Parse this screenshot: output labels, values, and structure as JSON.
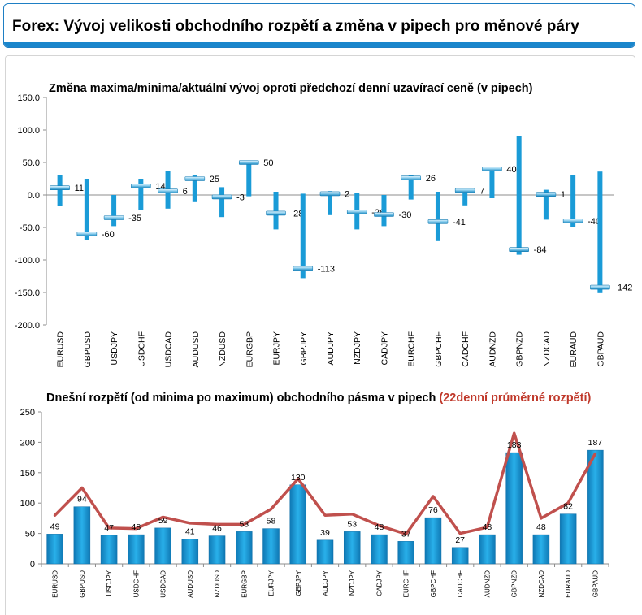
{
  "header": {
    "title": "Forex: Vývoj velikosti obchodního rozpětí a změna v pipech pro měnové páry"
  },
  "colors": {
    "bar": "#1a9bd7",
    "line": "#c0504d",
    "accent": "#1a86cc"
  },
  "chart_data": [
    {
      "type": "bar",
      "subtype": "floating range with marker",
      "title": "Změna maxima/minima/aktuální vývoj oproti předchozí denní uzavírací ceně (v pipech)",
      "xlabel": "",
      "ylabel": "",
      "ylim": [
        -200,
        150
      ],
      "yticks": [
        "150.0",
        "100.0",
        "50.0",
        "0.0",
        "-50.0",
        "-100.0",
        "-150.0",
        "-200.0"
      ],
      "grid": false,
      "categories": [
        "EURUSD",
        "GBPUSD",
        "USDJPY",
        "USDCHF",
        "USDCAD",
        "AUDUSD",
        "NZDUSD",
        "EURGBP",
        "EURJPY",
        "GBPJPY",
        "AUDJPY",
        "NZDJPY",
        "CADJPY",
        "EURCHF",
        "GBPCHF",
        "CADCHF",
        "AUDNZD",
        "GBPNZD",
        "NZDCAD",
        "EURAUD",
        "GBPAUD"
      ],
      "series": [
        {
          "values": [
            31,
            25,
            0,
            25,
            37,
            30,
            12,
            53,
            5,
            2,
            6,
            3,
            0,
            30,
            5,
            10,
            43,
            91,
            8,
            31,
            36
          ]
        },
        {
          "values": [
            -17,
            -69,
            -48,
            -23,
            -21,
            -11,
            -34,
            -2,
            -53,
            -128,
            -31,
            -53,
            -48,
            -7,
            -71,
            -16,
            -5,
            -92,
            -38,
            -50,
            -151
          ]
        },
        {
          "values": [
            11,
            -60,
            -35,
            14,
            6,
            25,
            -3,
            50,
            -28,
            -113,
            2,
            -26,
            -30,
            26,
            -41,
            7,
            40,
            -84,
            1,
            -40,
            -142
          ]
        }
      ],
      "labels": [
        "11",
        "-60",
        "-35",
        "14",
        "6",
        "25",
        "-3",
        "50",
        "-28",
        "-113",
        "2",
        "-26",
        "-30",
        "26",
        "-41",
        "7",
        "40",
        "-84",
        "1",
        "-40",
        "-142"
      ]
    },
    {
      "type": "bar",
      "title": "Dnešní rozpětí (od minima po maximum) obchodního pásma v pipech",
      "title_highlight": "(22denní průměrné rozpětí)",
      "xlabel": "",
      "ylabel": "",
      "ylim": [
        0,
        250
      ],
      "yticks": [
        "250",
        "200",
        "150",
        "100",
        "50",
        "0"
      ],
      "grid": false,
      "categories": [
        "EURUSD",
        "GBPUSD",
        "USDJPY",
        "USDCHF",
        "USDCAD",
        "AUDUSD",
        "NZDUSD",
        "EURGBP",
        "EURJPY",
        "GBPJPY",
        "AUDJPY",
        "NZDJPY",
        "CADJPY",
        "EURCHF",
        "GBPCHF",
        "CADCHF",
        "AUDNZD",
        "GBPNZD",
        "NZDCAD",
        "EURAUD",
        "GBPAUD"
      ],
      "series": [
        {
          "type": "bar",
          "values": [
            49,
            94,
            47,
            48,
            59,
            41,
            46,
            53,
            58,
            130,
            39,
            53,
            48,
            37,
            76,
            27,
            48,
            183,
            48,
            82,
            187
          ]
        },
        {
          "type": "line",
          "values": [
            80,
            125,
            59,
            58,
            77,
            67,
            65,
            65,
            90,
            140,
            80,
            82,
            63,
            49,
            111,
            50,
            60,
            215,
            75,
            100,
            181
          ]
        }
      ],
      "labels": [
        "49",
        "94",
        "47",
        "48",
        "59",
        "41",
        "46",
        "53",
        "58",
        "130",
        "39",
        "53",
        "48",
        "37",
        "76",
        "27",
        "48",
        "183",
        "48",
        "82",
        "187"
      ]
    }
  ]
}
